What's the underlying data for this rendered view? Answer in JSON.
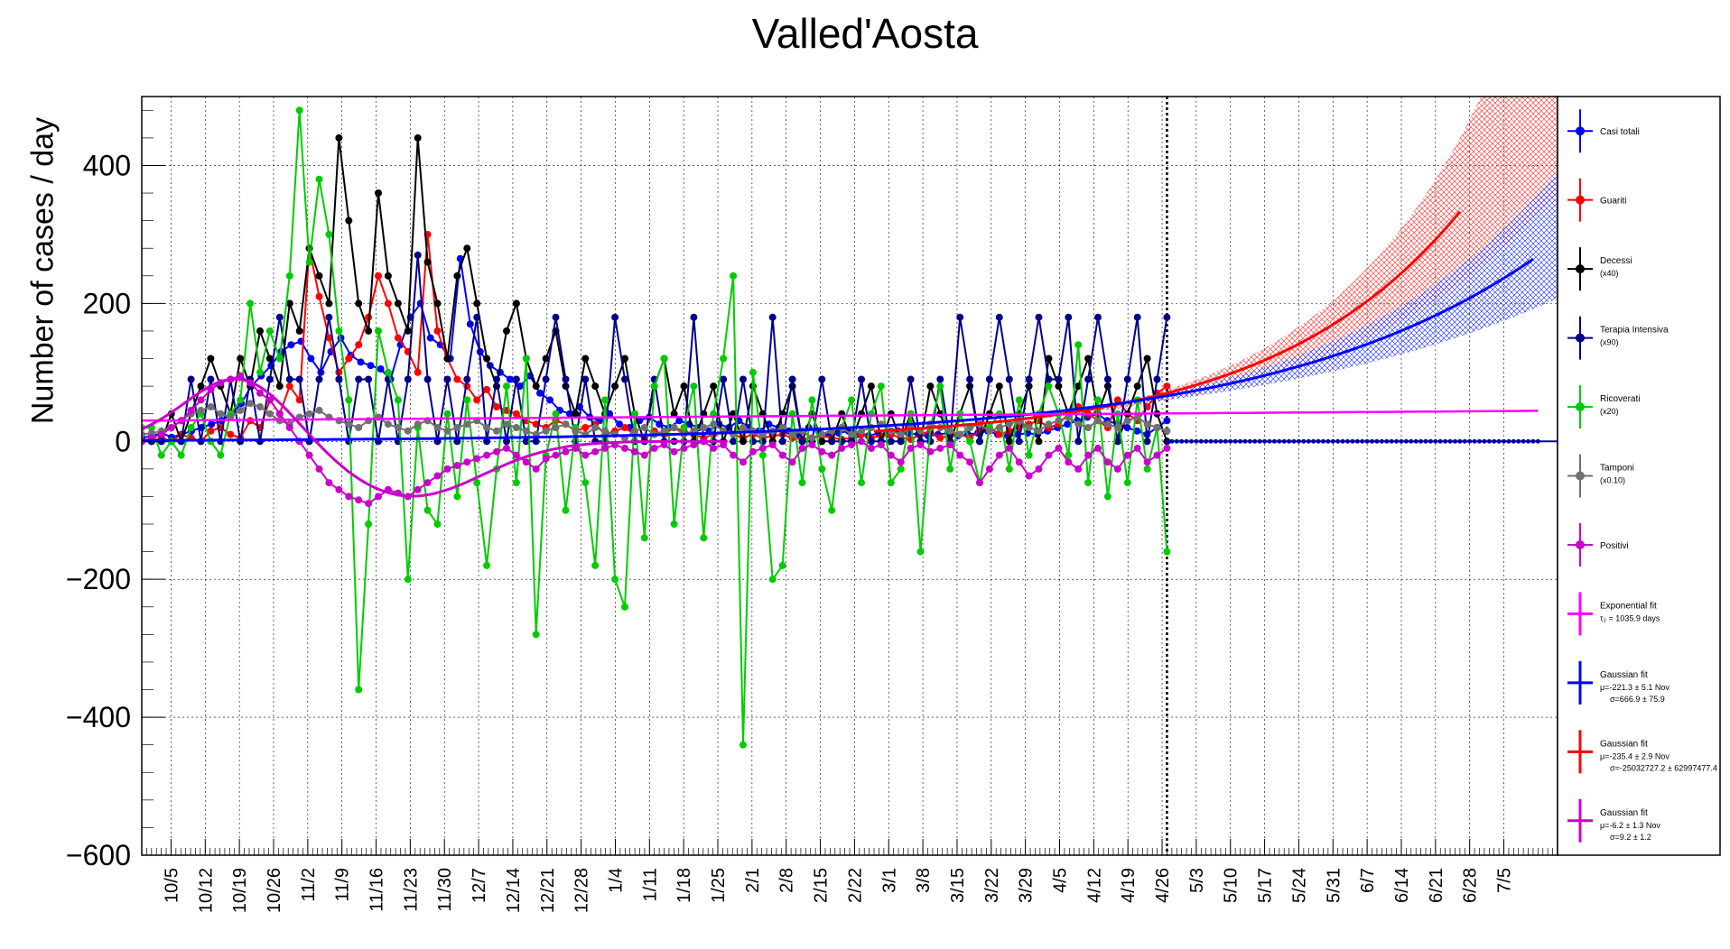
{
  "chart_data": {
    "type": "line",
    "title": "Valled'Aosta",
    "ylabel": "Number of cases / day",
    "xlabel": "",
    "ylim": [
      -600,
      500
    ],
    "grid": true,
    "legend_placement": "right",
    "x_ticks": [
      "10/5",
      "10/12",
      "10/19",
      "10/26",
      "11/2",
      "11/9",
      "11/16",
      "11/23",
      "11/30",
      "12/7",
      "12/14",
      "12/21",
      "12/28",
      "1/4",
      "1/11",
      "1/18",
      "1/25",
      "2/1",
      "2/8",
      "2/15",
      "2/22",
      "3/1",
      "3/8",
      "3/15",
      "3/22",
      "3/29",
      "4/5",
      "4/12",
      "4/19",
      "4/26",
      "5/3",
      "5/10",
      "5/17",
      "5/24",
      "5/31",
      "6/7",
      "6/14",
      "6/21",
      "6/28",
      "7/5"
    ],
    "y_ticks": [
      400,
      200,
      0,
      -200,
      -400,
      -600
    ],
    "y_tick_labels": [
      "400",
      "200",
      "0",
      "−200",
      "−400",
      "−600"
    ],
    "data_end_day": 210,
    "series": [
      {
        "name": "Casi totali",
        "color": "#0000ff",
        "values": [
          5,
          8,
          12,
          6,
          10,
          15,
          20,
          25,
          30,
          40,
          55,
          80,
          95,
          110,
          130,
          140,
          145,
          120,
          100,
          130,
          150,
          125,
          115,
          110,
          105,
          90,
          140,
          180,
          200,
          150,
          140,
          120,
          265,
          170,
          130,
          110,
          100,
          90,
          80,
          95,
          70,
          60,
          45,
          40,
          50,
          35,
          30,
          40,
          25,
          20,
          30,
          35,
          25,
          20,
          30,
          25,
          20,
          15,
          25,
          20,
          30,
          20,
          15,
          25,
          20,
          15,
          10,
          20,
          15,
          10,
          12,
          15,
          10,
          8,
          12,
          10,
          15,
          12,
          10,
          8,
          10,
          12,
          8,
          10,
          12,
          15,
          10,
          8,
          10,
          12,
          10,
          15,
          20,
          25,
          30,
          35,
          40,
          30,
          25,
          20,
          15,
          10,
          20,
          30
        ]
      },
      {
        "name": "Guariti",
        "color": "#ff0000",
        "values": [
          0,
          0,
          5,
          0,
          10,
          5,
          0,
          15,
          20,
          10,
          5,
          30,
          20,
          60,
          40,
          80,
          60,
          280,
          210,
          150,
          100,
          120,
          140,
          180,
          240,
          200,
          150,
          130,
          100,
          300,
          160,
          120,
          90,
          80,
          60,
          75,
          50,
          45,
          40,
          30,
          25,
          20,
          30,
          25,
          15,
          20,
          25,
          10,
          15,
          20,
          10,
          5,
          15,
          10,
          20,
          15,
          10,
          5,
          10,
          15,
          10,
          5,
          10,
          5,
          8,
          10,
          5,
          3,
          5,
          8,
          5,
          3,
          5,
          10,
          5,
          8,
          10,
          5,
          3,
          10,
          15,
          5,
          8,
          10,
          5,
          15,
          20,
          10,
          15,
          20,
          25,
          30,
          20,
          25,
          40,
          50,
          40,
          30,
          20,
          60,
          40,
          30,
          50,
          70,
          80
        ]
      },
      {
        "name": "Decessi (x40)",
        "color": "#000000",
        "values": [
          0,
          0,
          0,
          40,
          0,
          40,
          80,
          120,
          80,
          40,
          120,
          80,
          160,
          120,
          80,
          200,
          160,
          280,
          240,
          200,
          440,
          320,
          200,
          160,
          360,
          240,
          200,
          160,
          440,
          260,
          200,
          120,
          240,
          280,
          200,
          120,
          80,
          160,
          200,
          120,
          80,
          120,
          160,
          80,
          40,
          120,
          80,
          40,
          80,
          120,
          40,
          0,
          80,
          120,
          40,
          80,
          0,
          40,
          80,
          0,
          40,
          0,
          80,
          40,
          0,
          40,
          80,
          0,
          40,
          0,
          0,
          40,
          0,
          40,
          80,
          0,
          40,
          0,
          40,
          0,
          80,
          40,
          0,
          40,
          80,
          0,
          40,
          80,
          0,
          40,
          80,
          0,
          120,
          80,
          40,
          80,
          120,
          40,
          80,
          0,
          40,
          80,
          120,
          40,
          0
        ]
      },
      {
        "name": "Terapia Intensiva (x90)",
        "color": "#00008b",
        "values": [
          0,
          0,
          0,
          0,
          0,
          90,
          0,
          90,
          0,
          90,
          0,
          90,
          0,
          90,
          180,
          90,
          90,
          0,
          90,
          180,
          90,
          0,
          90,
          90,
          0,
          90,
          0,
          90,
          270,
          90,
          0,
          90,
          0,
          90,
          180,
          0,
          90,
          0,
          90,
          0,
          0,
          90,
          180,
          90,
          0,
          90,
          0,
          0,
          180,
          90,
          0,
          0,
          90,
          0,
          0,
          0,
          180,
          0,
          0,
          90,
          0,
          90,
          0,
          0,
          180,
          0,
          90,
          0,
          0,
          90,
          0,
          0,
          0,
          90,
          0,
          0,
          0,
          0,
          90,
          0,
          0,
          90,
          0,
          180,
          90,
          0,
          90,
          180,
          90,
          0,
          90,
          180,
          90,
          90,
          180,
          0,
          90,
          180,
          90,
          0,
          90,
          180,
          0,
          90,
          180
        ]
      },
      {
        "name": "Ricoverati (x20)",
        "color": "#00cc00",
        "values": [
          20,
          20,
          -20,
          0,
          -20,
          20,
          40,
          0,
          -20,
          40,
          60,
          200,
          100,
          160,
          120,
          240,
          480,
          260,
          380,
          300,
          160,
          60,
          -360,
          -120,
          160,
          100,
          60,
          -200,
          20,
          -100,
          -120,
          40,
          -80,
          60,
          -60,
          -180,
          -40,
          80,
          -60,
          120,
          -280,
          -20,
          40,
          -100,
          20,
          -60,
          -180,
          60,
          -200,
          -240,
          40,
          -140,
          80,
          120,
          -120,
          20,
          80,
          -140,
          40,
          120,
          240,
          -440,
          100,
          -20,
          -200,
          -180,
          40,
          -60,
          60,
          -40,
          -100,
          20,
          60,
          -60,
          40,
          80,
          -60,
          -40,
          40,
          -160,
          20,
          80,
          -40,
          40,
          0,
          -60,
          20,
          40,
          -40,
          60,
          -20,
          40,
          80,
          40,
          -20,
          140,
          -60,
          60,
          -80,
          40,
          -60,
          60,
          -40,
          20,
          -160
        ]
      },
      {
        "name": "Tamponi (x0.10)",
        "color": "#707070",
        "values": [
          10,
          12,
          15,
          20,
          30,
          40,
          45,
          50,
          40,
          35,
          45,
          55,
          50,
          40,
          30,
          25,
          35,
          40,
          45,
          35,
          30,
          25,
          20,
          30,
          35,
          25,
          20,
          15,
          25,
          30,
          20,
          15,
          20,
          25,
          30,
          20,
          15,
          25,
          20,
          15,
          10,
          15,
          20,
          25,
          15,
          10,
          20,
          15,
          10,
          5,
          15,
          20,
          10,
          15,
          20,
          10,
          15,
          20,
          25,
          15,
          10,
          20,
          15,
          10,
          15,
          20,
          10,
          15,
          5,
          10,
          15,
          20,
          10,
          15,
          20,
          25,
          15,
          10,
          20,
          15,
          25,
          20,
          15,
          10,
          20,
          25,
          15,
          20,
          25,
          30,
          20,
          15,
          25,
          30,
          35,
          25,
          20,
          30,
          25,
          20,
          30,
          35,
          25,
          20,
          15
        ]
      },
      {
        "name": "Positivi",
        "color": "#cc00cc",
        "values": [
          0,
          5,
          10,
          20,
          30,
          45,
          60,
          75,
          85,
          90,
          95,
          85,
          70,
          60,
          40,
          20,
          0,
          -20,
          -40,
          -60,
          -70,
          -80,
          -85,
          -90,
          -80,
          -70,
          -75,
          -80,
          -70,
          -60,
          -50,
          -40,
          -35,
          -30,
          -25,
          -20,
          -15,
          -10,
          -20,
          -30,
          -40,
          -25,
          -20,
          -15,
          -10,
          -20,
          -15,
          -10,
          -5,
          -10,
          -15,
          -20,
          -10,
          -5,
          -15,
          -10,
          -5,
          0,
          -10,
          -5,
          -20,
          -30,
          -15,
          -10,
          -5,
          -20,
          -30,
          -10,
          -5,
          -15,
          -20,
          -10,
          -5,
          0,
          -10,
          -5,
          -20,
          -30,
          -10,
          -5,
          -15,
          -10,
          -5,
          -20,
          -30,
          -60,
          -40,
          -20,
          -10,
          -30,
          -50,
          -40,
          -20,
          -10,
          -30,
          -40,
          -20,
          -10,
          -30,
          -40,
          -20,
          -10,
          -30,
          -20,
          -10
        ]
      }
    ],
    "fits": {
      "exponential": {
        "color": "#ff00ff"
      },
      "gaussian_blue": {
        "color": "#0000ff"
      },
      "gaussian_red": {
        "color": "#ff0000"
      },
      "gaussian_magenta": {
        "color": "#cc00cc"
      }
    },
    "legend": [
      {
        "title": "Casi totali",
        "sub": [
          "",
          ""
        ],
        "color": "#0000ff",
        "marker": true
      },
      {
        "title": "Guariti",
        "sub": [
          "",
          ""
        ],
        "color": "#ff0000",
        "marker": true
      },
      {
        "title": "Decessi",
        "sub": [
          "(x40)",
          ""
        ],
        "color": "#000000",
        "marker": true
      },
      {
        "title": "Terapia Intensiva",
        "sub": [
          "(x90)",
          ""
        ],
        "color": "#00008b",
        "marker": true
      },
      {
        "title": "Ricoverati",
        "sub": [
          "(x20)",
          ""
        ],
        "color": "#00cc00",
        "marker": true
      },
      {
        "title": "Tamponi",
        "sub": [
          "(x0.10)",
          ""
        ],
        "color": "#707070",
        "marker": true
      },
      {
        "title": "Positivi",
        "sub": [
          "",
          ""
        ],
        "color": "#cc00cc",
        "marker": true
      },
      {
        "title": "Exponential fit",
        "sub": [
          "τ₂ = 1035.9 days",
          ""
        ],
        "color": "#ff00ff",
        "marker": false
      },
      {
        "title": "Gaussian fit",
        "sub": [
          "μ=-221.3 ± 5.1 Nov",
          "σ=666.9 ± 75.9"
        ],
        "color": "#0000ff",
        "marker": false
      },
      {
        "title": "Gaussian fit",
        "sub": [
          "μ=-235.4 ± 2.9 Nov",
          "σ=-25032727.2 ± 62997477.4"
        ],
        "color": "#ff0000",
        "marker": false
      },
      {
        "title": "Gaussian fit",
        "sub": [
          "μ=-6.2 ± 1.3 Nov",
          "σ=9.2 ± 1.2"
        ],
        "color": "#cc00cc",
        "marker": false
      }
    ]
  }
}
